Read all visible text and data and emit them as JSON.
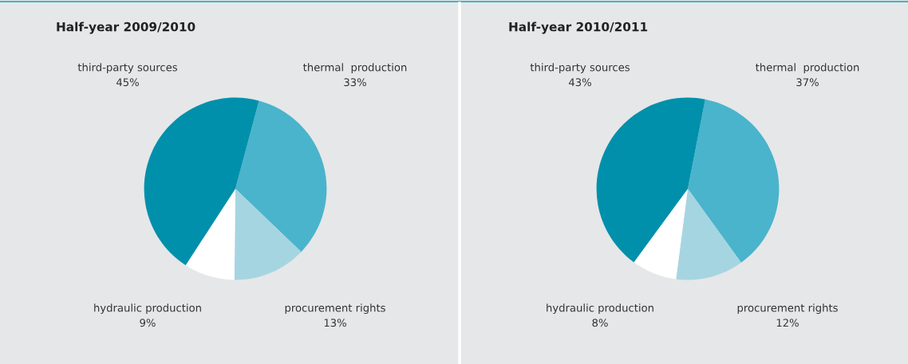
{
  "chart_data": [
    {
      "type": "pie",
      "title": "Half-year 2009/2010",
      "categories": [
        "thermal  production",
        "procurement rights",
        "hydraulic production",
        "third-party sources"
      ],
      "values": [
        33,
        13,
        9,
        45
      ],
      "value_labels": [
        "33%",
        "13%",
        "9%",
        "45%"
      ],
      "colors": [
        "#4ab4cc",
        "#a6d5e2",
        "#ffffff",
        "#0090ab"
      ]
    },
    {
      "type": "pie",
      "title": "Half-year 2010/2011",
      "categories": [
        "thermal  production",
        "procurement rights",
        "hydraulic production",
        "third-party sources"
      ],
      "values": [
        37,
        12,
        8,
        43
      ],
      "value_labels": [
        "37%",
        "12%",
        "8%",
        "43%"
      ],
      "colors": [
        "#4ab4cc",
        "#a6d5e2",
        "#ffffff",
        "#0090ab"
      ]
    }
  ]
}
